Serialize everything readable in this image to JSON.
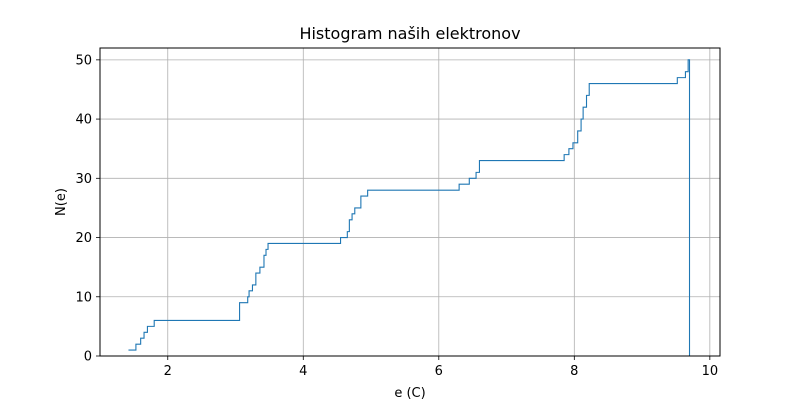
{
  "chart_data": {
    "type": "line",
    "title": "Histogram naših elektronov",
    "xlabel": "e (C)",
    "ylabel": "N(e)",
    "xlim": [
      1.0,
      10.15
    ],
    "ylim": [
      0,
      52
    ],
    "xticks": [
      2,
      4,
      6,
      8,
      10
    ],
    "yticks": [
      0,
      10,
      20,
      30,
      40,
      50
    ],
    "grid": true,
    "color": "#1f77b4",
    "series": [
      {
        "drawstyle": "steps-post",
        "x": [
          1.42,
          1.53,
          1.6,
          1.65,
          1.7,
          1.8,
          3.06,
          3.18,
          3.2,
          3.25,
          3.3,
          3.36,
          3.42,
          3.45,
          3.48,
          4.55,
          4.65,
          4.68,
          4.72,
          4.76,
          4.85,
          4.95,
          6.3,
          6.45,
          6.55,
          6.6,
          7.85,
          7.92,
          7.98,
          8.05,
          8.1,
          8.13,
          8.18,
          8.22,
          9.52,
          9.64,
          9.68,
          9.7
        ],
        "y": [
          1,
          2,
          3,
          4,
          5,
          6,
          9,
          10,
          11,
          12,
          14,
          15,
          17,
          18,
          19,
          20,
          21,
          23,
          24,
          25,
          27,
          28,
          29,
          30,
          31,
          33,
          34,
          35,
          36,
          38,
          40,
          42,
          44,
          46,
          47,
          48,
          50,
          0
        ]
      }
    ]
  }
}
